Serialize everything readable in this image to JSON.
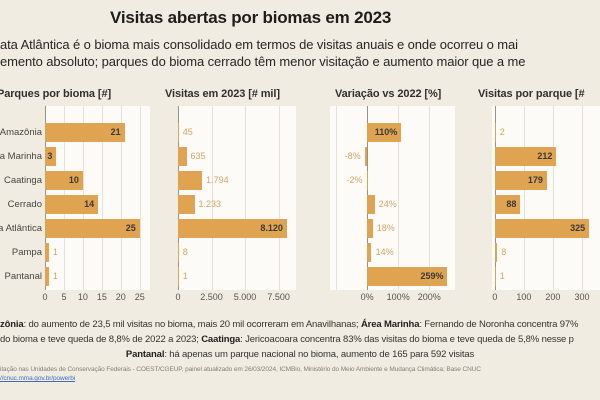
{
  "title": "Visitas abertas por biomas em 2023",
  "subtitle_lines": [
    "ata Atlântica é o bioma mais consolidado em termos de visitas anuais e onde ocorreu o mai",
    "emento absoluto; parques do bioma cerrado têm menor visitação e aumento maior que a me"
  ],
  "colors": {
    "background": "#f1ece1",
    "plot_bg": "#fcfbf8",
    "bar": "#dfa352",
    "label_outside": "#d5a364",
    "label_inside": "#3a3a36",
    "grid": "#e4e1d9",
    "axis": "#96938b",
    "link": "#3f6fc4"
  },
  "chart_data": {
    "type": "bar",
    "orientation": "horizontal",
    "grid": true,
    "categories": [
      "Amazônia",
      "Área Marinha",
      "Caatinga",
      "Cerrado",
      "Mata Atlântica",
      "Pampa",
      "Pantanal"
    ],
    "charts": [
      {
        "title": "Parques por bioma [#]",
        "values": [
          21,
          3,
          10,
          14,
          25,
          1,
          1
        ],
        "labels": [
          "21",
          "3",
          "10",
          "14",
          "25",
          "1",
          "1"
        ],
        "ticks": [
          {
            "v": 0,
            "label": "0"
          },
          {
            "v": 5,
            "label": "5"
          },
          {
            "v": 10,
            "label": "10"
          },
          {
            "v": 15,
            "label": "15"
          },
          {
            "v": 20,
            "label": "20"
          },
          {
            "v": 25,
            "label": "25"
          }
        ],
        "axis_range": [
          0,
          27.7
        ]
      },
      {
        "title": "Visitas em 2023 [# mil]",
        "values": [
          45,
          635,
          1794,
          1233,
          8120,
          8,
          1
        ],
        "labels": [
          "45",
          "635",
          "1.794",
          "1.233",
          "8.120",
          "8",
          "1"
        ],
        "ticks": [
          {
            "v": 0,
            "label": "0"
          },
          {
            "v": 2500,
            "label": "2.500"
          },
          {
            "v": 5000,
            "label": "5.000"
          },
          {
            "v": 7500,
            "label": "7.500"
          }
        ],
        "axis_range": [
          0,
          8800
        ]
      },
      {
        "title": "Variação vs 2022 [%]",
        "values": [
          110,
          -8,
          -2,
          24,
          18,
          14,
          259
        ],
        "labels": [
          "110%",
          "-8%",
          "-2%",
          "24%",
          "18%",
          "14%",
          "259%"
        ],
        "ticks": [
          {
            "v": -100,
            "label": ""
          },
          {
            "v": 0,
            "label": "0%"
          },
          {
            "v": 100,
            "label": "100%"
          },
          {
            "v": 200,
            "label": "200%"
          }
        ],
        "axis_range": [
          -120,
          283
        ]
      },
      {
        "title": "Visitas por parque [#",
        "values": [
          2,
          212,
          179,
          88,
          325,
          8,
          1
        ],
        "labels": [
          "2",
          "212",
          "179",
          "88",
          "325",
          "8",
          "1"
        ],
        "ticks": [
          {
            "v": 0,
            "label": "0"
          },
          {
            "v": 100,
            "label": "100"
          },
          {
            "v": 200,
            "label": "200"
          },
          {
            "v": 300,
            "label": "300"
          }
        ],
        "axis_range": [
          -10,
          369
        ]
      }
    ]
  },
  "notes": {
    "line1": [
      {
        "text": "zônia",
        "bold": true
      },
      {
        "text": ": do aumento de 23,5 mil visitas no bioma, mais 20 mil ocorreram em Anavilhanas; ",
        "bold": false
      },
      {
        "text": "Área Marinha",
        "bold": true
      },
      {
        "text": ": Fernando de Noronha concentra 97%",
        "bold": false
      }
    ],
    "line2": [
      {
        "text": "do bioma e teve queda de 8,8% de 2022 a 2023; ",
        "bold": false
      },
      {
        "text": "Caatinga",
        "bold": true
      },
      {
        "text": ": Jericoacoara concentra 83% das visitas do bioma e teve queda de 5,8% nesse p",
        "bold": false
      }
    ],
    "line3": [
      {
        "text": "Pantanal",
        "bold": true
      },
      {
        "text": ": há apenas um parque nacional no bioma, aumento de 165 para 592 visitas",
        "bold": false
      }
    ]
  },
  "source": {
    "text": "itação nas Unidades de Conservação Federais - COEST/CGEUP, painel atualizado em 26/03/2024, ICMBio, Ministério do Meio Ambiente e Mudança Climática; Base CNUC",
    "link": "//cnuc.mma.gov.br/powerbi"
  }
}
